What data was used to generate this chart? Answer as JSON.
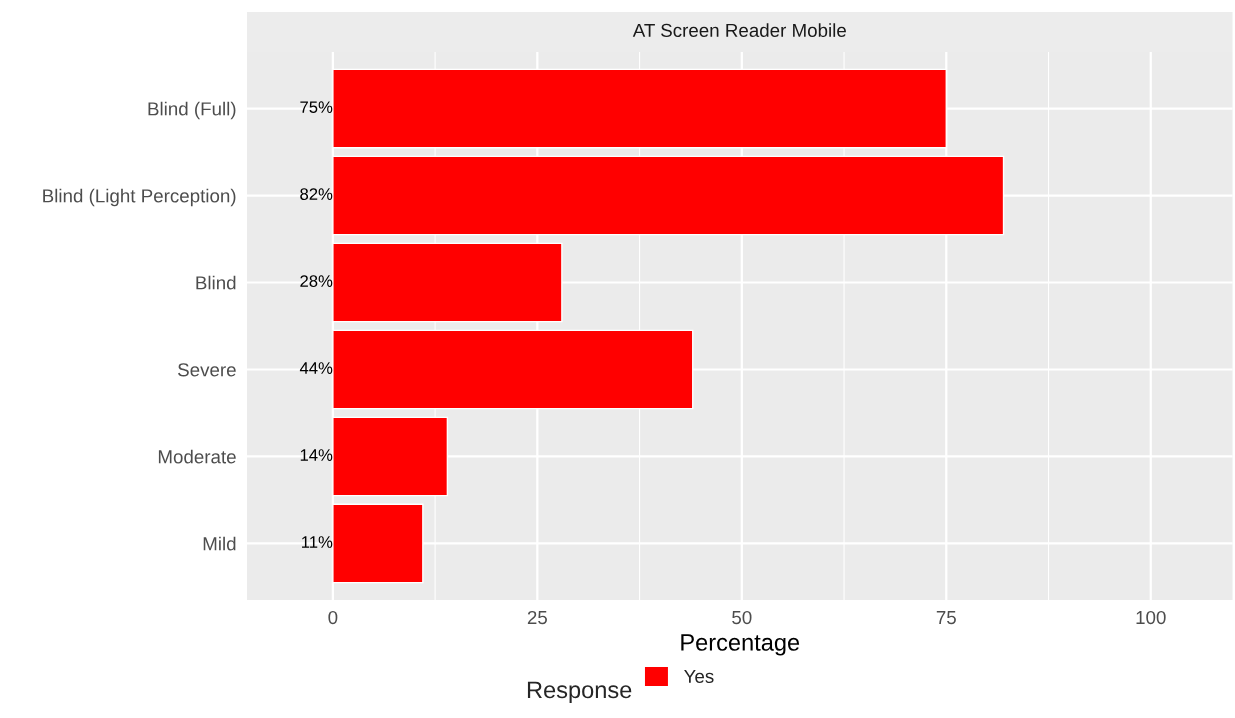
{
  "chart_data": {
    "type": "bar",
    "orientation": "horizontal",
    "title": "AT Screen Reader Mobile",
    "xlabel": "Percentage",
    "legend_title": "Response",
    "categories": [
      "Blind (Full)",
      "Blind (Light Perception)",
      "Blind",
      "Severe",
      "Moderate",
      "Mild"
    ],
    "series": [
      {
        "name": "Yes",
        "color": "#ff0000",
        "values": [
          75,
          82,
          28,
          44,
          14,
          11
        ],
        "value_labels": [
          "75%",
          "82%",
          "28%",
          "44%",
          "14%",
          "11%"
        ]
      }
    ],
    "xlim": [
      -10.5,
      110
    ],
    "xticks": [
      0,
      25,
      50,
      75,
      100
    ],
    "grid": true,
    "legend": "bottom"
  }
}
